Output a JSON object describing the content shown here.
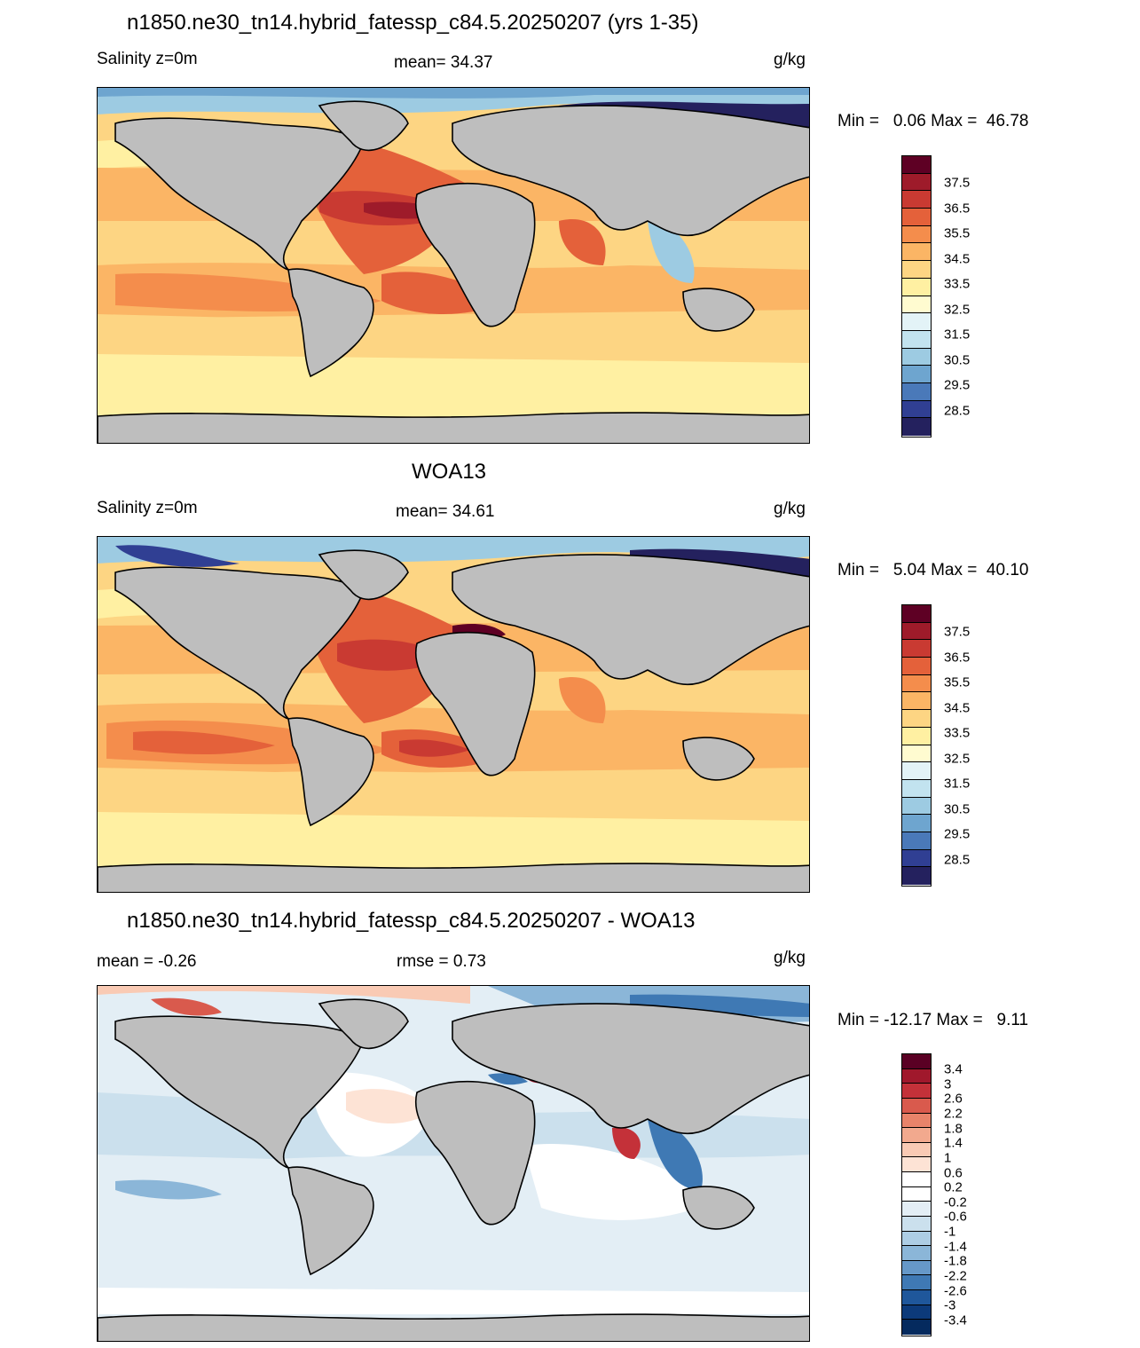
{
  "panels": [
    {
      "title": "n1850.ne30_tn14.hybrid_fatessp_c84.5.20250207 (yrs 1-35)",
      "left_label": "Salinity z=0m",
      "center_label": "mean=  34.37",
      "units": "g/kg",
      "minmax": "Min =   0.06 Max =  46.78",
      "colorbar_labels": [
        "37.5",
        "36.5",
        "35.5",
        "34.5",
        "33.5",
        "32.5",
        "31.5",
        "30.5",
        "29.5",
        "28.5"
      ]
    },
    {
      "title": "WOA13",
      "left_label": "Salinity z=0m",
      "center_label": "mean=  34.61",
      "units": "g/kg",
      "minmax": "Min =   5.04 Max =  40.10",
      "colorbar_labels": [
        "37.5",
        "36.5",
        "35.5",
        "34.5",
        "33.5",
        "32.5",
        "31.5",
        "30.5",
        "29.5",
        "28.5"
      ]
    },
    {
      "title": "n1850.ne30_tn14.hybrid_fatessp_c84.5.20250207 - WOA13",
      "left_label": "mean =  -0.26",
      "center_label": "rmse =   0.73",
      "units": "g/kg",
      "minmax": "Min = -12.17 Max =   9.11",
      "colorbar_labels": [
        "3.4",
        "3",
        "2.6",
        "2.2",
        "1.8",
        "1.4",
        "1",
        "0.6",
        "0.2",
        "-0.2",
        "-0.6",
        "-1",
        "-1.4",
        "-1.8",
        "-2.2",
        "-2.6",
        "-3",
        "-3.4"
      ]
    }
  ],
  "colors": {
    "land": "#bebebe",
    "salinity_scale": [
      "#5e0024",
      "#9e1b2a",
      "#c93a32",
      "#e4613a",
      "#f48d4c",
      "#fbb565",
      "#fdd583",
      "#fff0a2",
      "#fffbd0",
      "#e3f3f7",
      "#c2e3ef",
      "#9dcbe2",
      "#6ea5cf",
      "#4a79b9",
      "#303f93",
      "#24215e"
    ],
    "diff_scale": [
      "#5a0024",
      "#a0182c",
      "#c43139",
      "#d95a4d",
      "#e8836a",
      "#f2a98e",
      "#f9cab4",
      "#fde3d5",
      "#ffffff",
      "#ffffff",
      "#e3eef5",
      "#cbe0ed",
      "#adcde4",
      "#8bb6d8",
      "#6698c8",
      "#3f79b4",
      "#1f579b",
      "#0c3a7a",
      "#052a5e"
    ]
  }
}
